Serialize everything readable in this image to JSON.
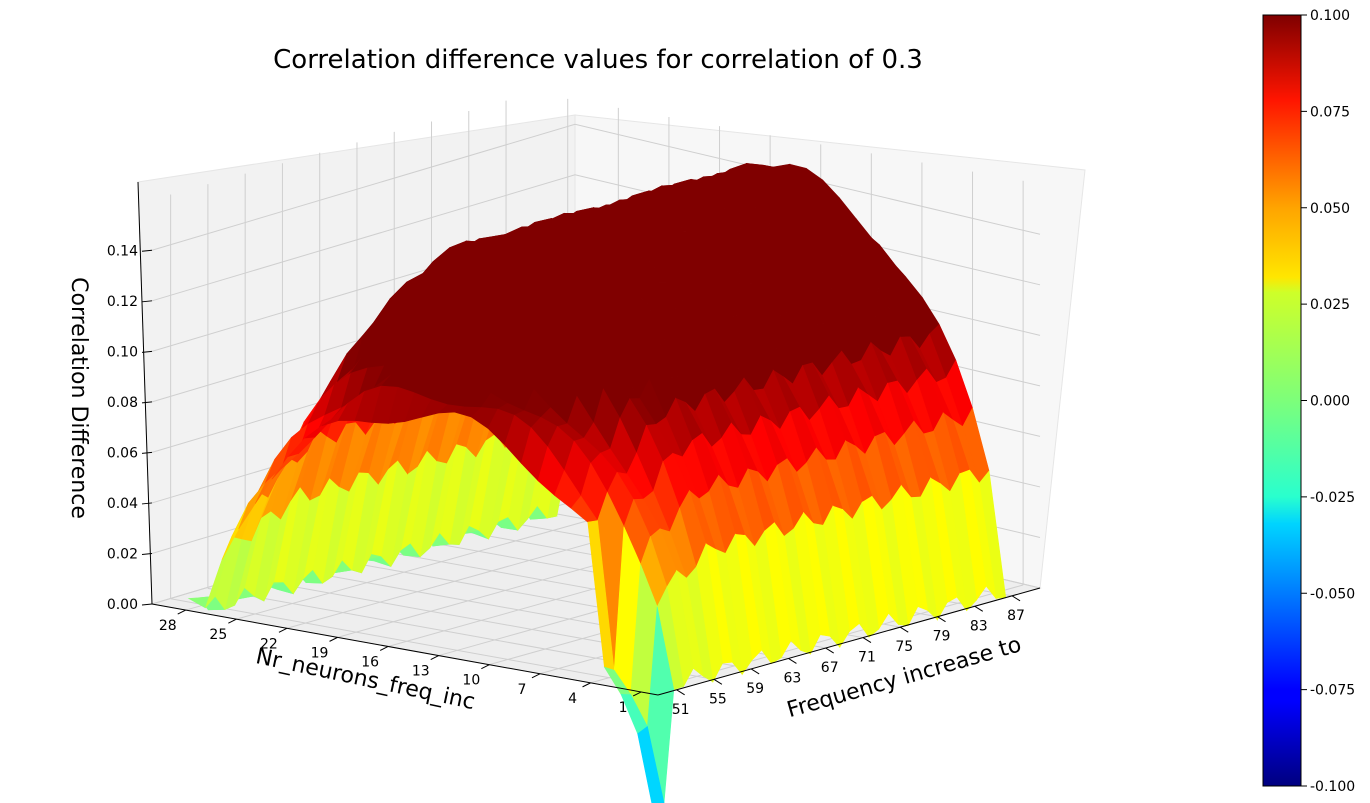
{
  "chart_data": {
    "type": "surface3d",
    "title": "Correlation difference values for correlation of 0.3",
    "xlabel": "Frequency increase to",
    "ylabel": "Nr_neurons_freq_inc",
    "zlabel": "Correlation Difference",
    "x_ticks": [
      "51",
      "55",
      "59",
      "63",
      "67",
      "71",
      "75",
      "79",
      "83",
      "87"
    ],
    "y_ticks": [
      "28",
      "25",
      "22",
      "19",
      "16",
      "13",
      "10",
      "7",
      "4",
      "1"
    ],
    "z_ticks": [
      "0.00",
      "0.02",
      "0.04",
      "0.06",
      "0.08",
      "0.10",
      "0.12",
      "0.14"
    ],
    "x_range": [
      49,
      90
    ],
    "y_range": [
      0,
      30
    ],
    "z_range": [
      0,
      0.16
    ],
    "colormap": "jet",
    "color_range": [
      -0.1,
      0.1
    ],
    "colorbar_ticks": [
      "0.100",
      "0.075",
      "0.050",
      "0.025",
      "0.000",
      "-0.025",
      "-0.050",
      "-0.075",
      "-0.100"
    ],
    "description_values": {
      "ridge_plateau_max": 0.15,
      "front_edge_min": 0.0,
      "dip_min_at": {
        "x": 51,
        "y": 1,
        "z": -0.02
      }
    },
    "grid": true
  }
}
